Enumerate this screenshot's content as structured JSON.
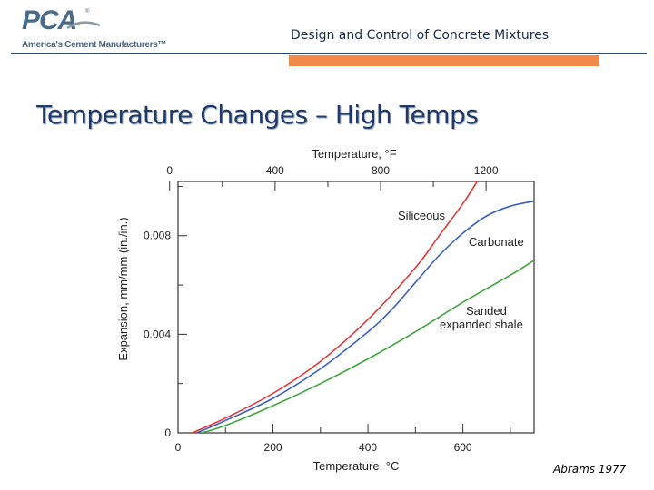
{
  "logo": {
    "mark": "PCA",
    "registered": "®",
    "tagline": "America's Cement Manufacturers™"
  },
  "header": {
    "title": "Design and Control of Concrete Mixtures",
    "accent_color": "#f08a4b",
    "line_color": "#2a4a70"
  },
  "slide": {
    "title": "Temperature Changes – High Temps",
    "citation": "Abrams 1977"
  },
  "chart_data": {
    "type": "line",
    "xlabel": "Temperature, °C",
    "x2label": "Temperature, °F",
    "ylabel": "Expansion, mm/mm (in./in.)",
    "xlim": [
      0,
      750
    ],
    "ylim": [
      0,
      0.0102
    ],
    "x_ticks": [
      {
        "value": 0,
        "label": "0"
      },
      {
        "value": 200,
        "label": "200"
      },
      {
        "value": 400,
        "label": "400"
      },
      {
        "value": 600,
        "label": "600"
      }
    ],
    "x_minor_ticks": [
      100,
      300,
      500,
      700
    ],
    "x2_ticks": [
      {
        "value": 0,
        "label": "0"
      },
      {
        "value": 400,
        "label": "400"
      },
      {
        "value": 800,
        "label": "800"
      },
      {
        "value": 1200,
        "label": "1200"
      }
    ],
    "y_ticks": [
      {
        "value": 0,
        "label": "0"
      },
      {
        "value": 0.004,
        "label": "0.004"
      },
      {
        "value": 0.008,
        "label": "0.008"
      }
    ],
    "y_minor_ticks": [
      0.002,
      0.006,
      0.01
    ],
    "grid": false,
    "series": [
      {
        "name": "Siliceous",
        "color": "#e23838",
        "points": [
          [
            30,
            0
          ],
          [
            100,
            0.0006
          ],
          [
            200,
            0.0016
          ],
          [
            300,
            0.0029
          ],
          [
            400,
            0.0046
          ],
          [
            500,
            0.0067
          ],
          [
            550,
            0.008
          ],
          [
            600,
            0.0093
          ],
          [
            630,
            0.0102
          ]
        ]
      },
      {
        "name": "Carbonate",
        "color": "#3a5fc4",
        "points": [
          [
            40,
            0
          ],
          [
            100,
            0.0005
          ],
          [
            200,
            0.0014
          ],
          [
            300,
            0.0026
          ],
          [
            400,
            0.0041
          ],
          [
            450,
            0.005
          ],
          [
            500,
            0.0061
          ],
          [
            550,
            0.0072
          ],
          [
            600,
            0.0081
          ],
          [
            650,
            0.0088
          ],
          [
            700,
            0.0092
          ],
          [
            750,
            0.0094
          ]
        ]
      },
      {
        "name": "Sanded\nexpanded shale",
        "color": "#3fa63f",
        "points": [
          [
            50,
            0
          ],
          [
            100,
            0.0003
          ],
          [
            200,
            0.0011
          ],
          [
            300,
            0.002
          ],
          [
            400,
            0.003
          ],
          [
            500,
            0.0041
          ],
          [
            600,
            0.0053
          ],
          [
            700,
            0.0064
          ],
          [
            750,
            0.007
          ]
        ]
      }
    ],
    "labels": [
      {
        "series": "Siliceous",
        "lines": [
          "Siliceous"
        ]
      },
      {
        "series": "Carbonate",
        "lines": [
          "Carbonate"
        ]
      },
      {
        "series": "Sanded expanded shale",
        "lines": [
          "Sanded",
          "expanded shale"
        ]
      }
    ]
  }
}
